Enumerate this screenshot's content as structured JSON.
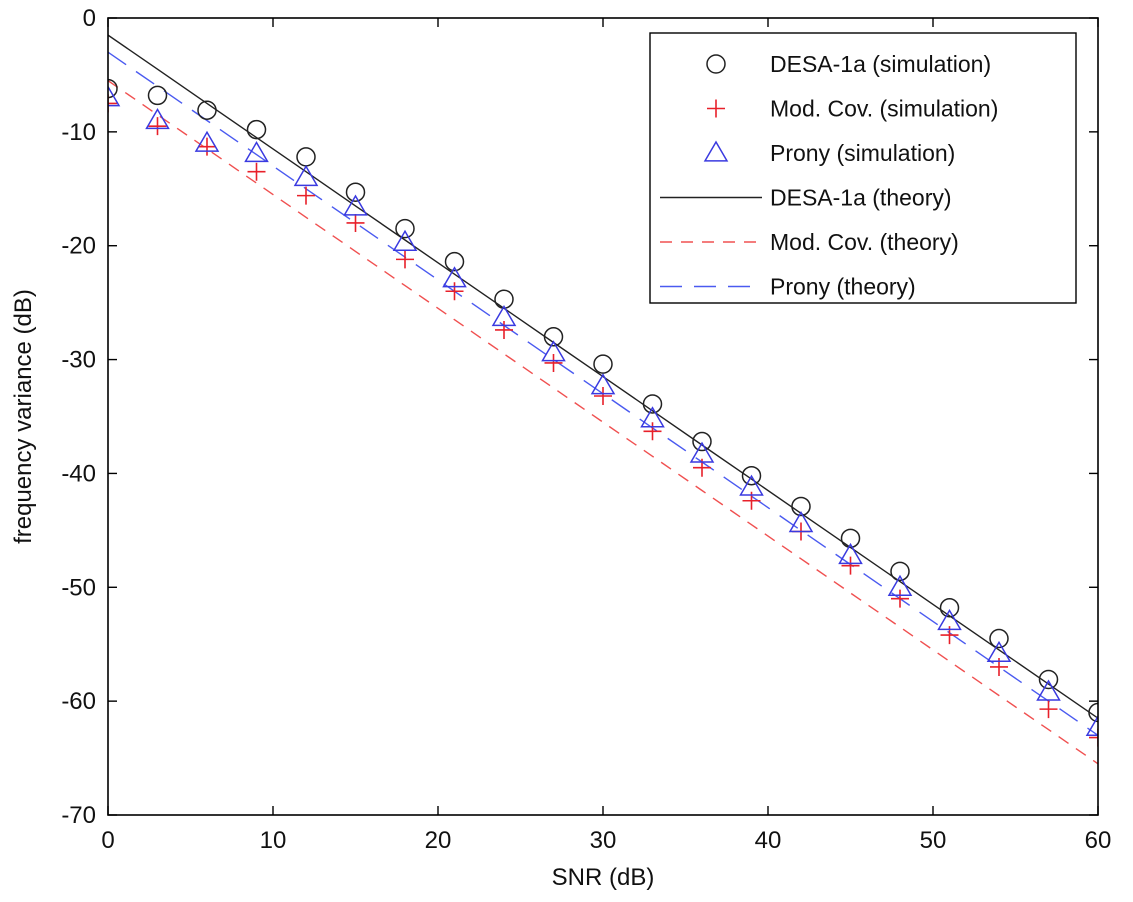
{
  "chart_data": {
    "type": "line",
    "xlabel": "SNR (dB)",
    "ylabel": "frequency variance (dB)",
    "xlim": [
      0,
      60
    ],
    "ylim": [
      -70,
      0
    ],
    "xticks": [
      0,
      10,
      20,
      30,
      40,
      50,
      60
    ],
    "yticks": [
      0,
      -10,
      -20,
      -30,
      -40,
      -50,
      -60,
      -70
    ],
    "grid": false,
    "legend_position": "top-right",
    "x": [
      0,
      3,
      6,
      9,
      12,
      15,
      18,
      21,
      24,
      27,
      30,
      33,
      36,
      39,
      42,
      45,
      48,
      51,
      54,
      57,
      60
    ],
    "series": [
      {
        "name": "DESA-1a (simulation)",
        "style": "marker",
        "marker": "circle",
        "color": "#222222",
        "values": [
          -6.2,
          -6.8,
          -8.1,
          -9.8,
          -12.2,
          -15.3,
          -18.5,
          -21.4,
          -24.7,
          -28.0,
          -30.4,
          -33.9,
          -37.2,
          -40.2,
          -42.9,
          -45.7,
          -48.6,
          -51.8,
          -54.5,
          -58.1,
          -61.0
        ]
      },
      {
        "name": "Mod. Cov. (simulation)",
        "style": "marker",
        "marker": "plus",
        "color": "#e8202a",
        "values": [
          -7.5,
          -9.5,
          -11.3,
          -13.5,
          -15.6,
          -18.0,
          -21.2,
          -24.0,
          -27.4,
          -30.3,
          -33.2,
          -36.3,
          -39.5,
          -42.4,
          -45.1,
          -48.1,
          -51.0,
          -54.2,
          -57.0,
          -60.7,
          -63.2
        ]
      },
      {
        "name": "Prony (simulation)",
        "style": "marker",
        "marker": "triangle",
        "color": "#3a3ae0",
        "values": [
          -7.0,
          -9.0,
          -11.0,
          -11.9,
          -14.0,
          -16.6,
          -19.7,
          -22.9,
          -26.3,
          -29.4,
          -32.3,
          -35.2,
          -38.3,
          -41.2,
          -44.4,
          -47.2,
          -50.0,
          -53.0,
          -55.8,
          -59.2,
          -62.3
        ]
      },
      {
        "name": "DESA-1a (theory)",
        "style": "solid",
        "color": "#222222",
        "values": [
          -1.5,
          -4.5,
          -7.5,
          -10.5,
          -13.5,
          -16.5,
          -19.5,
          -22.5,
          -25.5,
          -28.5,
          -31.5,
          -34.5,
          -37.5,
          -40.5,
          -43.5,
          -46.5,
          -49.5,
          -52.5,
          -55.5,
          -58.5,
          -61.5
        ]
      },
      {
        "name": "Mod. Cov. (theory)",
        "style": "dashed",
        "color": "#f05050",
        "values": [
          -5.5,
          -8.5,
          -11.5,
          -14.5,
          -17.5,
          -20.5,
          -23.5,
          -26.5,
          -29.5,
          -32.5,
          -35.5,
          -38.5,
          -41.5,
          -44.5,
          -47.5,
          -50.5,
          -53.5,
          -56.5,
          -59.5,
          -62.5,
          -65.5
        ]
      },
      {
        "name": "Prony (theory)",
        "style": "longdash",
        "color": "#4a5af0",
        "values": [
          -3.0,
          -6.0,
          -9.0,
          -12.0,
          -15.0,
          -18.0,
          -21.0,
          -24.0,
          -27.0,
          -30.0,
          -33.0,
          -36.0,
          -39.0,
          -42.0,
          -45.0,
          -48.0,
          -51.0,
          -54.0,
          -57.0,
          -60.0,
          -63.0
        ]
      }
    ]
  }
}
